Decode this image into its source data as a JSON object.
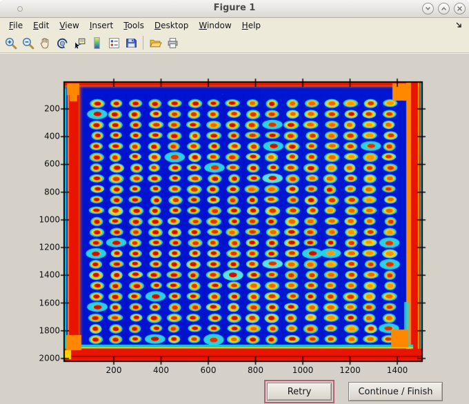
{
  "window": {
    "title": "Figure 1",
    "controls": {
      "minimize": "chevron-down-icon",
      "maximize": "chevron-up-icon",
      "close": "close-icon"
    }
  },
  "menu_bar": {
    "items": [
      "File",
      "Edit",
      "View",
      "Insert",
      "Tools",
      "Desktop",
      "Window",
      "Help"
    ],
    "dock_icon": "dock-figure-arrow"
  },
  "toolbar": {
    "buttons": [
      "zoom-in",
      "zoom-out",
      "pan",
      "rotate-3d",
      "data-cursor",
      "insert-colorbar",
      "insert-legend",
      "save-figure",
      "open-file",
      "print-figure"
    ],
    "separator_after": "save-figure"
  },
  "figure": {
    "x_tick_labels": [
      "200",
      "400",
      "600",
      "800",
      "1000",
      "1200",
      "1400"
    ],
    "y_tick_labels": [
      "200",
      "400",
      "600",
      "800",
      "1000",
      "1200",
      "1400",
      "1600",
      "1800",
      "2000"
    ]
  },
  "chart_data": {
    "type": "heatmap",
    "colormap": "jet",
    "x_ticks": [
      200,
      400,
      600,
      800,
      1000,
      1200,
      1400
    ],
    "y_ticks": [
      200,
      400,
      600,
      800,
      1000,
      1200,
      1400,
      1600,
      1800,
      2000
    ],
    "x_range": [
      0,
      1520
    ],
    "y_range": [
      0,
      2030
    ],
    "spot_grid": {
      "rows": 23,
      "cols": 16
    },
    "colors": {
      "field_blue": "#0013cf",
      "spot_outer_cyan": "#28d0e8",
      "spot_mid_yellow": "#ffd60a",
      "spot_ring_orange": "#ff9100",
      "spot_core_red": "#cf0d00",
      "edge_red": "#e81400",
      "edge_orange": "#ff8800",
      "edge_cyan": "#00d8e8",
      "edge_yellow": "#ffd400"
    }
  },
  "actions": {
    "retry_label": "Retry",
    "continue_label": "Continue / Finish"
  }
}
